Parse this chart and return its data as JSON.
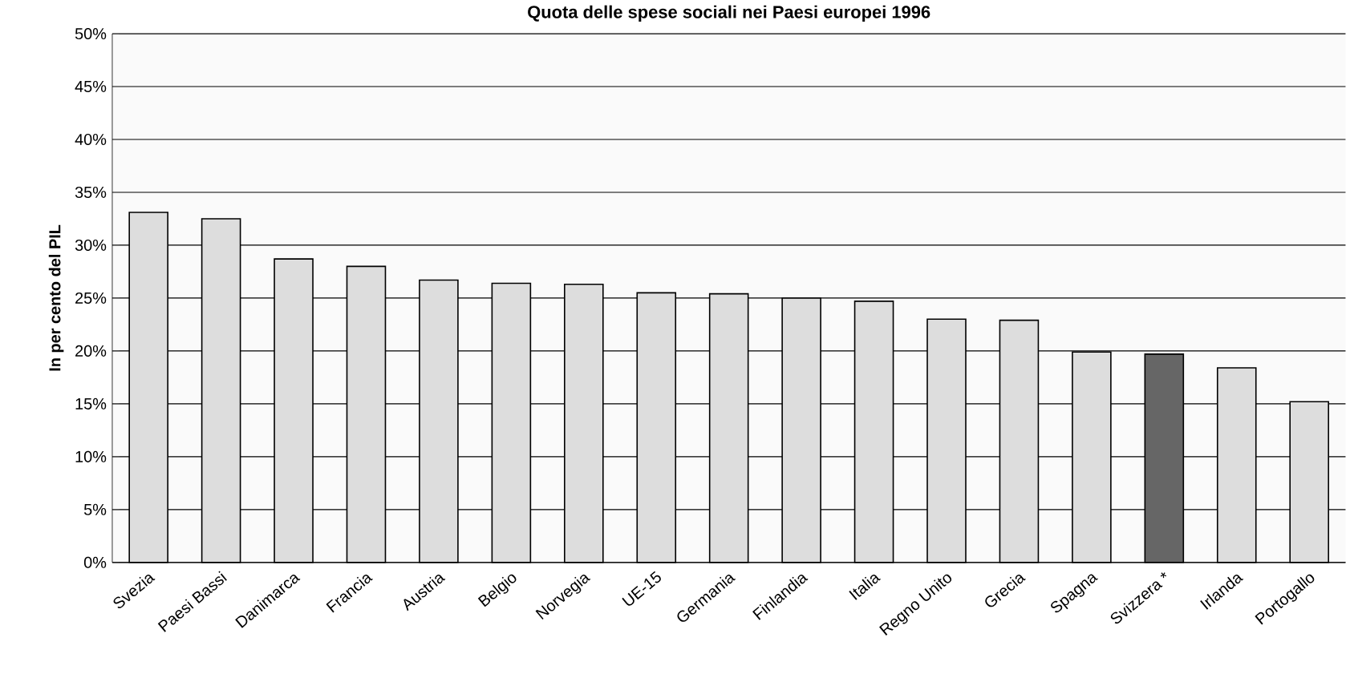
{
  "chart_data": {
    "type": "bar",
    "title": "Quota delle spese sociali nei Paesi europei 1996",
    "ylabel": "In per cento del PIL",
    "categories": [
      "Svezia",
      "Paesi Bassi",
      "Danimarca",
      "Francia",
      "Austria",
      "Belgio",
      "Norvegia",
      "UE-15",
      "Germania",
      "Finlandia",
      "Italia",
      "Regno Unito",
      "Grecia",
      "Spagna",
      "Svizzera *",
      "Irlanda",
      "Portogallo"
    ],
    "values": [
      33.1,
      32.5,
      28.7,
      28.0,
      26.7,
      26.4,
      26.3,
      25.5,
      25.4,
      25.0,
      24.7,
      23.0,
      22.9,
      19.9,
      19.7,
      18.4,
      15.2
    ],
    "colors": [
      "#dddddd",
      "#dddddd",
      "#dddddd",
      "#dddddd",
      "#dddddd",
      "#dddddd",
      "#dddddd",
      "#dddddd",
      "#dddddd",
      "#dddddd",
      "#dddddd",
      "#dddddd",
      "#dddddd",
      "#dddddd",
      "#666666",
      "#dddddd",
      "#dddddd"
    ],
    "ylim": [
      0,
      50
    ],
    "yticks": [
      {
        "value": 0,
        "label": "0%"
      },
      {
        "value": 5,
        "label": "5%"
      },
      {
        "value": 10,
        "label": "10%"
      },
      {
        "value": 15,
        "label": "15%"
      },
      {
        "value": 20,
        "label": "20%"
      },
      {
        "value": 25,
        "label": "25%"
      },
      {
        "value": 30,
        "label": "30%"
      },
      {
        "value": 35,
        "label": "35%"
      },
      {
        "value": 40,
        "label": "40%"
      },
      {
        "value": 45,
        "label": "45%"
      },
      {
        "value": 50,
        "label": "50%"
      }
    ],
    "grid": "y"
  }
}
